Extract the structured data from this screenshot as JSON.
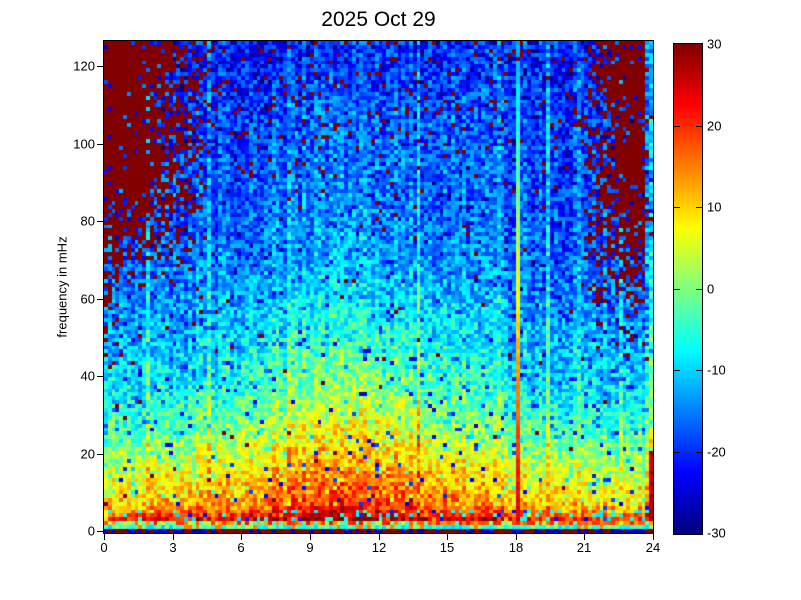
{
  "figure": {
    "background": "#ffffff"
  },
  "chart_data": {
    "type": "heatmap",
    "title": "2025 Oct 29",
    "xlabel": "",
    "ylabel": "frequency in mHz",
    "x_ticks": [
      0,
      3,
      6,
      9,
      12,
      15,
      18,
      21,
      24
    ],
    "y_ticks": [
      0,
      20,
      40,
      60,
      80,
      100,
      120
    ],
    "colorbar_ticks": [
      30,
      20,
      10,
      0,
      -10,
      -20,
      -30
    ],
    "x_range_hours": [
      0,
      24
    ],
    "y_range_mhz": [
      0,
      126.7
    ],
    "value_range_db": [
      -30,
      30
    ],
    "colormap": "jet",
    "grid": {
      "columns": 144,
      "rows": 126
    },
    "seed": 20251029,
    "background_profile_mhz_db": [
      [
        0,
        26
      ],
      [
        3,
        20
      ],
      [
        5,
        14
      ],
      [
        8,
        9
      ],
      [
        12,
        6
      ],
      [
        16,
        3
      ],
      [
        20,
        0
      ],
      [
        28,
        -5
      ],
      [
        36,
        -9
      ],
      [
        48,
        -12
      ],
      [
        60,
        -15
      ],
      [
        80,
        -18
      ],
      [
        100,
        -19
      ],
      [
        126,
        -20
      ]
    ],
    "features": {
      "noise_amplitude": 6,
      "column_noise": 2.5,
      "day_boost": {
        "center_hour": 10.5,
        "width": 6,
        "peak_freq": 25,
        "freq_spread": 35,
        "base_amount": 3,
        "peak_amount": 8
      },
      "red_speckle": {
        "base_probability": 0.005,
        "high_freq_probability": 0.06,
        "freq_onset": 70,
        "freq_span": 45,
        "value": 30
      },
      "blue_speckle": {
        "probability": 0.03,
        "value": -25
      },
      "saturated_block_top_left": {
        "hour_max": 4.8,
        "freq_min": 62,
        "density": 0.93
      },
      "saturated_block_top_right": {
        "hour_min": 21.0,
        "freq_min": 52,
        "density": 0.9
      },
      "event_stripe": {
        "hour": 18.1,
        "value_at_f0": 26,
        "db_per_mhz": 0.31
      },
      "cyan_stripe_hours": [
        1.9,
        4.6,
        8.1,
        13.8,
        17.3,
        19.4,
        20.7,
        22.6
      ],
      "warm_stripe_hours": [
        6.8,
        9.05,
        10.6,
        19.9
      ],
      "right_edge": {
        "red_max_freq": 20,
        "red_value": 27,
        "cyan_boost": 9
      },
      "bottom_rows": {
        "red_probability": 0.55,
        "red_value": 30,
        "gap_value": -26
      }
    }
  }
}
